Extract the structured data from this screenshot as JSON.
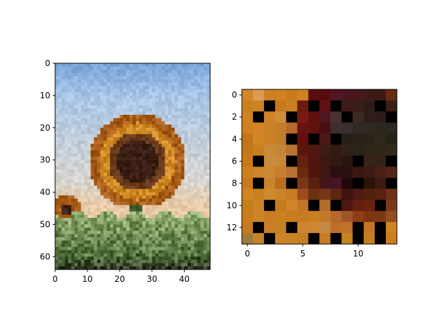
{
  "figure": {
    "background": "#ffffff"
  },
  "chart_data": [
    {
      "type": "heatmap",
      "title": "",
      "xlabel": "",
      "ylabel": "",
      "image_size": [
        48,
        64
      ],
      "xlim": [
        0,
        48
      ],
      "ylim": [
        64,
        0
      ],
      "x_ticks": [
        0,
        10,
        20,
        30,
        40
      ],
      "y_ticks": [
        0,
        10,
        20,
        30,
        40,
        50,
        60
      ],
      "palette": {
        "sky_top": "#7aa6da",
        "sky_mid": "#a9c6e6",
        "sky_low": "#d8d6d0",
        "horizon": "#e7c9a6",
        "petal": "#cf8a25",
        "petal_dark": "#a85d18",
        "center": "#3a1e14",
        "center_ring": "#6a3a1a",
        "stem": "#3f5a2a",
        "foliage": "#4f6e3a",
        "foliage_light": "#8aa66a",
        "soil": "#2e3324"
      }
    },
    {
      "type": "heatmap",
      "title": "",
      "xlabel": "",
      "ylabel": "",
      "image_size": [
        14,
        14
      ],
      "xlim": [
        -0.5,
        13.5
      ],
      "ylim": [
        13.5,
        -0.5
      ],
      "x_ticks": [
        0,
        5,
        10
      ],
      "y_ticks": [
        0,
        2,
        4,
        6,
        8,
        10,
        12
      ],
      "rows": [
        [
          "#d2852a",
          "#dd9a52",
          "#cf7e22",
          "#d0821f",
          "#c97c19",
          "#cf8420",
          "#5a0b0b",
          "#5a0b0b",
          "#501522",
          "#47161f",
          "#47161f",
          "#3e1a16",
          "#3e1a16",
          "#6a2a12"
        ],
        [
          "#c9801f",
          "#c98526",
          "#000000",
          "#c5791c",
          "#ca7f20",
          "#6b1a0b",
          "#000000",
          "#5e1114",
          "#000000",
          "#3c1a1a",
          "#3a1c18",
          "#2d1b16",
          "#000000",
          "#3b1e16"
        ],
        [
          "#d08322",
          "#000000",
          "#cf8324",
          "#d18c3a",
          "#000000",
          "#791b12",
          "#5e1010",
          "#4f1620",
          "#4a3032",
          "#000000",
          "#3a2a22",
          "#2f1e18",
          "#2d1c17",
          "#000000"
        ],
        [
          "#d07f20",
          "#d38427",
          "#c98226",
          "#c67d29",
          "#b56a2a",
          "#6a1210",
          "#60120f",
          "#4a0e12",
          "#3e2e2e",
          "#3b2f2e",
          "#2e2a26",
          "#302922",
          "#2d261f",
          "#2c2720"
        ],
        [
          "#c37319",
          "#d08826",
          "#cb8125",
          "#c27d2c",
          "#000000",
          "#650f0c",
          "#000000",
          "#4a1916",
          "#000000",
          "#262016",
          "#2a2219",
          "#2b2318",
          "#2f291c",
          "#272215"
        ],
        [
          "#c37818",
          "#c87e1f",
          "#c98a3a",
          "#c6843a",
          "#b77334",
          "#5a160d",
          "#4e170f",
          "#3c1a16",
          "#321912",
          "#2e211a",
          "#2a2317",
          "#2e2618",
          "#2f2619",
          "#35291b"
        ],
        [
          "#c77a18",
          "#000000",
          "#cc8a3c",
          "#c7883a",
          "#000000",
          "#66220e",
          "#4f1510",
          "#3e1810",
          "#311813",
          "#2a1611",
          "#000000",
          "#3a2218",
          "#33221a",
          "#000000"
        ],
        [
          "#cb7f1e",
          "#cd842a",
          "#cc8930",
          "#c57e2b",
          "#b97234",
          "#6a2a10",
          "#4e160d",
          "#3c1713",
          "#2a0e10",
          "#2a1010",
          "#3c1712",
          "#3a1a12",
          "#4a1e14",
          "#522418"
        ],
        [
          "#c87b18",
          "#000000",
          "#c8852a",
          "#b86e1a",
          "#000000",
          "#7a3418",
          "#5a200e",
          "#441418",
          "#461524",
          "#210808",
          "#000000",
          "#2a1208",
          "#3c1a12",
          "#000000"
        ],
        [
          "#d08520",
          "#c98120",
          "#cf8a2e",
          "#cd8428",
          "#c97c28",
          "#9c4c1c",
          "#6a3010",
          "#7a3418",
          "#5e2610",
          "#3e1410",
          "#501a12",
          "#502010",
          "#5a2010",
          "#713018"
        ],
        [
          "#c67e1a",
          "#cd8427",
          "#000000",
          "#c67a1c",
          "#ce8427",
          "#c17726",
          "#000000",
          "#b06e2a",
          "#000000",
          "#4a1810",
          "#661e10",
          "#6a220f",
          "#000000",
          "#7a3a1a"
        ],
        [
          "#cd7d1c",
          "#ca8524",
          "#c87c23",
          "#c9801e",
          "#ca7b20",
          "#c77a1f",
          "#c87f22",
          "#c37a28",
          "#b5692a",
          "#a0542a",
          "#8e3d16",
          "#7c3411",
          "#7b3812",
          "#944b1e"
        ],
        [
          "#c47c1f",
          "#000000",
          "#cc7e27",
          "#c58025",
          "#000000",
          "#d0842e",
          "#ce8634",
          "#c28a44",
          "#bf6e26",
          "#c37329",
          "#000000",
          "#c37523",
          "#000000",
          "#d08222"
        ],
        [
          "#9e7a3b",
          "#c5822b",
          "#000000",
          "#cd8327",
          "#c98327",
          "#c67f20",
          "#000000",
          "#c67c22",
          "#000000",
          "#c58120",
          "#000000",
          "#c47e1f",
          "#000000",
          "#cc7e1c"
        ]
      ]
    }
  ]
}
